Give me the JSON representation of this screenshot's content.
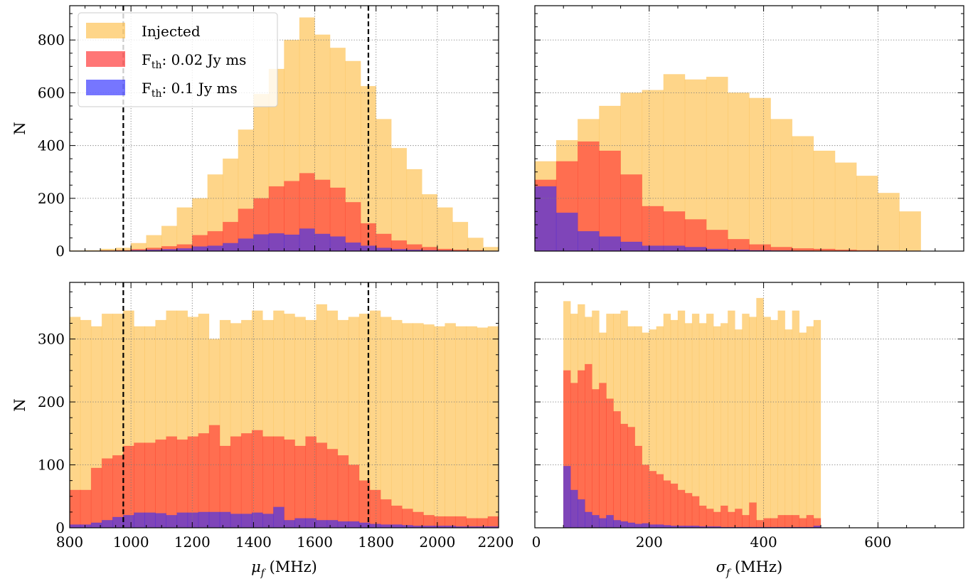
{
  "chart_data": [
    {
      "type": "bar",
      "panel": "top-left",
      "xlim": [
        800,
        2200
      ],
      "ylim": [
        0,
        930
      ],
      "xticks": [],
      "yticks": [
        0,
        200,
        400,
        600,
        800
      ],
      "xlabel": "",
      "ylabel": "N",
      "bin_start": 800,
      "bin_width": 50,
      "vlines": [
        975,
        1775
      ],
      "grid": true,
      "legend": {
        "position": "top-left",
        "entries": [
          {
            "label": "Injected",
            "color": "#fdb93a"
          },
          {
            "label": "F_th: 0.02 Jy ms",
            "label_main": "F",
            "label_sub": "th",
            "label_rest": ": 0.02 Jy ms",
            "color": "#ff1a1a"
          },
          {
            "label": "F_th: 0.1 Jy ms",
            "label_main": "F",
            "label_sub": "th",
            "label_rest": ": 0.1 Jy ms",
            "color": "#1a1aff"
          }
        ]
      },
      "series": [
        {
          "name": "Injected",
          "color": "#fdb93a",
          "values": [
            2,
            3,
            8,
            12,
            30,
            60,
            95,
            165,
            200,
            290,
            350,
            460,
            595,
            690,
            800,
            885,
            820,
            770,
            720,
            625,
            500,
            390,
            310,
            215,
            165,
            110,
            50,
            15
          ]
        },
        {
          "name": "F_th: 0.02 Jy ms",
          "color": "#ff2a2a",
          "values": [
            0,
            0,
            2,
            3,
            7,
            12,
            18,
            25,
            60,
            75,
            110,
            160,
            200,
            245,
            265,
            295,
            270,
            240,
            185,
            105,
            65,
            40,
            25,
            15,
            8,
            5,
            3,
            1
          ]
        },
        {
          "name": "F_th: 0.1 Jy ms",
          "color": "#2a2aff",
          "values": [
            0,
            0,
            0,
            1,
            3,
            5,
            7,
            10,
            17,
            20,
            30,
            47,
            63,
            67,
            62,
            85,
            65,
            55,
            32,
            20,
            12,
            7,
            5,
            3,
            2,
            1,
            0,
            0
          ]
        }
      ]
    },
    {
      "type": "bar",
      "panel": "top-right",
      "xlim": [
        0,
        750
      ],
      "ylim": [
        0,
        930
      ],
      "xticks": [],
      "yticks": [
        0,
        200,
        400,
        600,
        800
      ],
      "xlabel": "",
      "ylabel": "",
      "bin_start": 0,
      "bin_width": 37.5,
      "vlines": [],
      "grid": true,
      "series": [
        {
          "name": "Injected",
          "color": "#fdb93a",
          "values": [
            340,
            420,
            500,
            550,
            600,
            610,
            670,
            650,
            660,
            600,
            580,
            500,
            435,
            380,
            335,
            285,
            220,
            150
          ]
        },
        {
          "name": "F_th: 0.02 Jy ms",
          "color": "#ff2a2a",
          "values": [
            270,
            340,
            415,
            380,
            290,
            170,
            150,
            120,
            80,
            45,
            25,
            15,
            10,
            8,
            5,
            3,
            2,
            1
          ]
        },
        {
          "name": "F_th: 0.1 Jy ms",
          "color": "#2a2aff",
          "values": [
            245,
            145,
            75,
            55,
            35,
            20,
            20,
            15,
            8,
            5,
            3,
            2,
            1,
            0,
            0,
            0,
            0,
            0
          ]
        }
      ]
    },
    {
      "type": "bar",
      "panel": "bottom-left",
      "xlim": [
        800,
        2200
      ],
      "ylim": [
        0,
        390
      ],
      "xticks": [
        800,
        1000,
        1200,
        1400,
        1600,
        1800,
        2000,
        2200
      ],
      "yticks": [
        0,
        100,
        200,
        300
      ],
      "xlabel": "μ_f (MHz)",
      "ylabel": "N",
      "bin_start": 800,
      "bin_width": 35,
      "vlines": [
        975,
        1775
      ],
      "grid": true,
      "series": [
        {
          "name": "Injected",
          "color": "#fdb93a",
          "values": [
            335,
            330,
            320,
            340,
            340,
            345,
            320,
            320,
            330,
            345,
            345,
            335,
            340,
            300,
            330,
            325,
            330,
            345,
            330,
            345,
            340,
            335,
            330,
            355,
            345,
            330,
            335,
            340,
            345,
            335,
            330,
            325,
            325,
            323,
            320,
            325,
            320,
            320,
            318,
            320
          ]
        },
        {
          "name": "F_th: 0.02 Jy ms",
          "color": "#ff2a2a",
          "values": [
            60,
            60,
            95,
            110,
            115,
            130,
            135,
            135,
            140,
            145,
            140,
            145,
            150,
            163,
            130,
            145,
            150,
            155,
            145,
            145,
            140,
            130,
            145,
            135,
            125,
            115,
            100,
            75,
            60,
            45,
            35,
            30,
            25,
            20,
            18,
            18,
            18,
            15,
            15,
            18
          ]
        },
        {
          "name": "F_th: 0.1 Jy ms",
          "color": "#2a2aff",
          "values": [
            5,
            5,
            8,
            12,
            17,
            20,
            24,
            24,
            23,
            20,
            24,
            24,
            25,
            25,
            25,
            22,
            22,
            24,
            22,
            33,
            12,
            15,
            15,
            12,
            12,
            10,
            10,
            8,
            6,
            5,
            5,
            4,
            3,
            3,
            3,
            3,
            2,
            2,
            2,
            2
          ]
        }
      ]
    },
    {
      "type": "bar",
      "panel": "bottom-right",
      "xlim": [
        0,
        750
      ],
      "ylim": [
        0,
        390
      ],
      "xticks": [
        0,
        200,
        400,
        600
      ],
      "yticks": [
        0,
        100,
        200,
        300
      ],
      "xlabel": "σ_f (MHz)",
      "ylabel": "",
      "bin_start": 50,
      "bin_width": 12.5,
      "vlines": [],
      "grid": true,
      "series": [
        {
          "name": "Injected",
          "color": "#fdb93a",
          "values": [
            360,
            340,
            355,
            335,
            345,
            310,
            340,
            340,
            345,
            320,
            320,
            310,
            315,
            320,
            340,
            330,
            345,
            325,
            340,
            325,
            340,
            320,
            325,
            345,
            315,
            340,
            335,
            365,
            335,
            330,
            345,
            315,
            345,
            310,
            320,
            330
          ]
        },
        {
          "name": "F_th: 0.02 Jy ms",
          "color": "#ff2a2a",
          "values": [
            250,
            230,
            250,
            260,
            220,
            230,
            205,
            185,
            165,
            160,
            130,
            100,
            90,
            85,
            75,
            70,
            60,
            55,
            50,
            35,
            30,
            25,
            35,
            25,
            30,
            20,
            40,
            12,
            15,
            15,
            20,
            20,
            20,
            15,
            20,
            15
          ]
        },
        {
          "name": "F_th: 0.1 Jy ms",
          "color": "#2a2aff",
          "values": [
            98,
            60,
            45,
            25,
            20,
            15,
            20,
            12,
            10,
            8,
            6,
            7,
            5,
            5,
            4,
            3,
            3,
            3,
            3,
            2,
            2,
            2,
            1,
            1,
            1,
            1,
            1,
            1,
            1,
            1,
            1,
            1,
            1,
            1,
            1,
            3
          ]
        }
      ]
    }
  ]
}
